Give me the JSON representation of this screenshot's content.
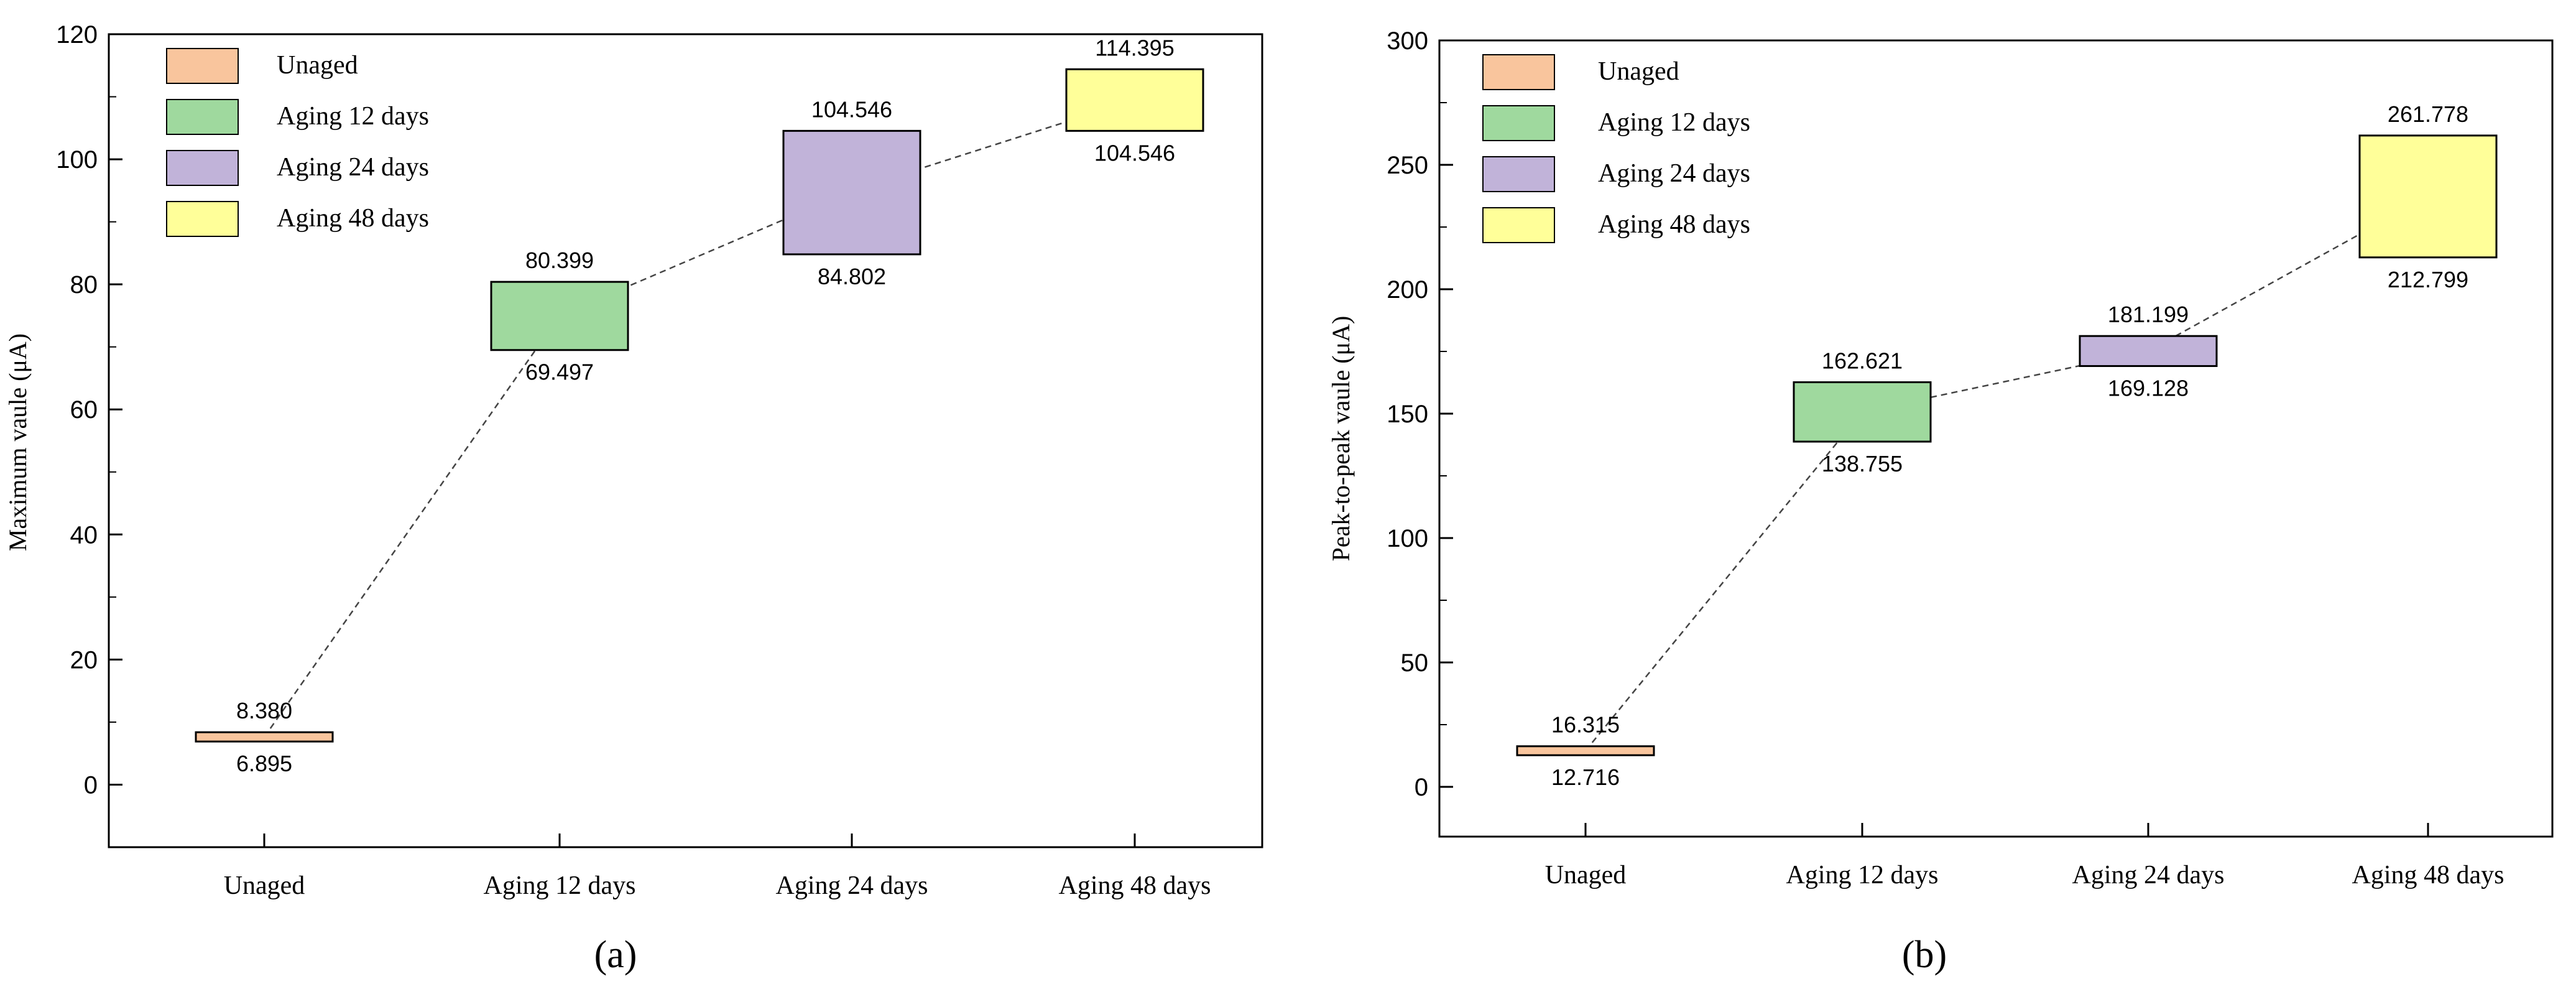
{
  "chart_data": [
    {
      "type": "box",
      "panel_label": "(a)",
      "panel_letter": "a",
      "title": "",
      "xlabel": "",
      "ylabel": "Maximum vaule (μA)",
      "ylim": [
        -10,
        120
      ],
      "yticks": [
        0,
        20,
        40,
        60,
        80,
        100,
        120
      ],
      "categories": [
        "Unaged",
        "Aging 12 days",
        "Aging 24 days",
        "Aging 48 days"
      ],
      "boxes": [
        {
          "low": 6.895,
          "high": 8.38,
          "low_label": "6.895",
          "high_label": "8.380",
          "mid": 7.6
        },
        {
          "low": 69.497,
          "high": 80.399,
          "low_label": "69.497",
          "high_label": "80.399",
          "mid": 75.0
        },
        {
          "low": 84.802,
          "high": 104.546,
          "low_label": "84.802",
          "high_label": "104.546",
          "mid": 95.0
        },
        {
          "low": 104.546,
          "high": 114.395,
          "low_label": "104.546",
          "high_label": "114.395",
          "mid": 109.5
        }
      ],
      "colors": [
        "#f9c59d",
        "#9fd99e",
        "#c1b3d9",
        "#ffff99"
      ],
      "legend": [
        "Unaged",
        "Aging 12 days",
        "Aging 24 days",
        "Aging 48 days"
      ],
      "legend_position": "top-left",
      "grid": false
    },
    {
      "type": "box",
      "panel_label": "(b)",
      "panel_letter": "b",
      "title": "",
      "xlabel": "",
      "ylabel": "Peak-to-peak  vaule (μA)",
      "ylim": [
        -20,
        300
      ],
      "yticks": [
        0,
        50,
        100,
        150,
        200,
        250,
        300
      ],
      "categories": [
        "Unaged",
        "Aging 12 days",
        "Aging 24 days",
        "Aging 48 days"
      ],
      "boxes": [
        {
          "low": 12.716,
          "high": 16.315,
          "low_label": "12.716",
          "high_label": "16.315",
          "mid": 14.5
        },
        {
          "low": 138.755,
          "high": 162.621,
          "low_label": "138.755",
          "high_label": "162.621",
          "mid": 150.7
        },
        {
          "low": 169.128,
          "high": 181.199,
          "low_label": "169.128",
          "high_label": "181.199",
          "mid": 175.1
        },
        {
          "low": 212.799,
          "high": 261.778,
          "low_label": "212.799",
          "high_label": "261.778",
          "mid": 237.3
        }
      ],
      "colors": [
        "#f9c59d",
        "#9fd99e",
        "#c1b3d9",
        "#ffff99"
      ],
      "legend": [
        "Unaged",
        "Aging 12 days",
        "Aging 24 days",
        "Aging 48 days"
      ],
      "legend_position": "top-left",
      "grid": false
    }
  ]
}
